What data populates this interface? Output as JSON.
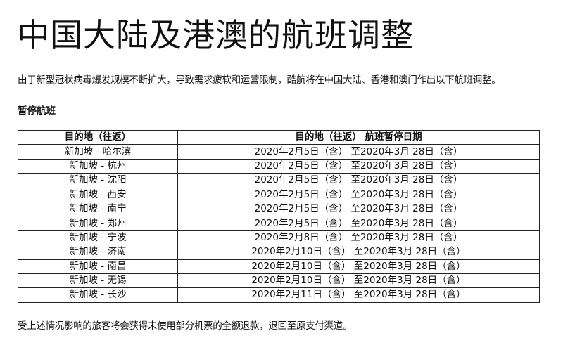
{
  "title": "中国大陆及港澳的航班调整",
  "intro": "由于新型冠状病毒爆发规模不断扩大，导致需求疲软和运营限制，酷航将在中国大陆、香港和澳门作出以下航班调整。",
  "section_title": "暂停航班",
  "table": {
    "headers": [
      "目的地（往返）",
      "目的地（往返） 航班暂停日期"
    ],
    "rows": [
      [
        "新加坡 - 哈尔滨",
        "2020年2月5日（含） 至2020年3月 28日（含）"
      ],
      [
        "新加坡 - 杭州",
        "2020年2月5日（含） 至2020年3月 28日（含）"
      ],
      [
        "新加坡 - 沈阳",
        "2020年2月5日（含） 至2020年3月 28日（含）"
      ],
      [
        "新加坡 - 西安",
        "2020年2月5日（含） 至2020年3月 28日（含）"
      ],
      [
        "新加坡 - 南宁",
        "2020年2月5日（含） 至2020年3月 28日（含）"
      ],
      [
        "新加坡 - 郑州",
        "2020年2月5日（含） 至2020年3月 28日（含）"
      ],
      [
        "新加坡 - 宁波",
        "2020年2月8日（含） 至2020年3月 28日（含）"
      ],
      [
        "新加坡 - 济南",
        "2020年2月10日（含） 至2020年3月 28日（含）"
      ],
      [
        "新加坡 - 南昌",
        "2020年2月10日（含） 至2020年3月 28日（含）"
      ],
      [
        "新加坡 - 无锡",
        "2020年2月10日（含） 至2020年3月 28日（含）"
      ],
      [
        "新加坡 - 长沙",
        "2020年2月11日（含） 至2020年3月 28日（含）"
      ]
    ]
  },
  "footer": "受上述情况影响的旅客将会获得未使用部分机票的全额退款，退回至原支付渠道。"
}
